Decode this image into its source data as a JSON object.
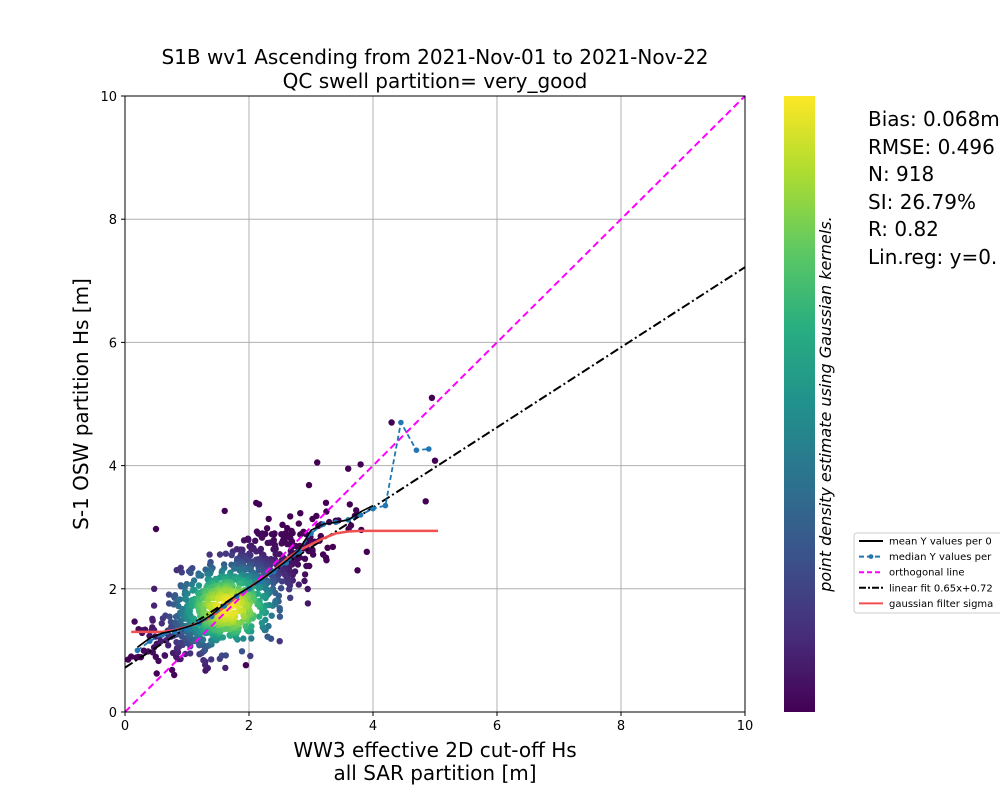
{
  "chart_data": {
    "type": "scatter",
    "title": "S1B wv1 Ascending from 2021-Nov-01 to 2021-Nov-22",
    "subtitle": "QC swell partition= very_good",
    "xlabel": "WW3 effective 2D cut-off Hs",
    "xlabel_line2": "all SAR partition [m]",
    "ylabel": "S-1 OSW partition Hs [m]",
    "xlim": [
      0,
      10
    ],
    "ylim": [
      0,
      10
    ],
    "x_ticks": [
      "0",
      "2",
      "4",
      "6",
      "8",
      "10"
    ],
    "y_ticks": [
      "0",
      "2",
      "4",
      "6",
      "8",
      "10"
    ],
    "grid": true,
    "colorbar_label": "point density estimate using Gaussian kernels.",
    "colormap": "viridis",
    "stats": {
      "bias": "Bias: 0.068m",
      "rmse": "RMSE: 0.496",
      "n": "N: 918",
      "si": "SI: 26.79%",
      "r": "R: 0.82",
      "linreg": "Lin.reg: y=0."
    },
    "legend_position": "lower-right (outside)",
    "legend": [
      {
        "label": "mean Y values per 0",
        "color": "#000000",
        "style": "solid"
      },
      {
        "label": "median Y values per",
        "color": "#1f77b4",
        "style": "dashed-marker"
      },
      {
        "label": "orthogonal line",
        "color": "#ff00ff",
        "style": "dashed"
      },
      {
        "label": "linear fit 0.65x+0.72",
        "color": "#000000",
        "style": "dashdot"
      },
      {
        "label": "gaussian filter sigma",
        "color": "#f05050",
        "style": "solid"
      }
    ],
    "lines": {
      "orthogonal": [
        [
          0,
          0
        ],
        [
          10,
          10
        ]
      ],
      "linear_fit": {
        "slope": 0.65,
        "intercept": 0.72
      },
      "mean": [
        [
          0.2,
          1.05
        ],
        [
          0.4,
          1.2
        ],
        [
          0.6,
          1.28
        ],
        [
          0.8,
          1.32
        ],
        [
          1.0,
          1.38
        ],
        [
          1.2,
          1.45
        ],
        [
          1.4,
          1.58
        ],
        [
          1.6,
          1.75
        ],
        [
          1.8,
          1.9
        ],
        [
          2.0,
          2.02
        ],
        [
          2.2,
          2.15
        ],
        [
          2.4,
          2.3
        ],
        [
          2.6,
          2.45
        ],
        [
          2.8,
          2.62
        ],
        [
          3.0,
          2.95
        ],
        [
          3.2,
          3.05
        ],
        [
          3.4,
          3.08
        ],
        [
          3.6,
          3.12
        ],
        [
          3.8,
          3.25
        ],
        [
          4.0,
          3.35
        ]
      ],
      "median": [
        [
          0.2,
          1.0
        ],
        [
          0.4,
          1.15
        ],
        [
          0.6,
          1.25
        ],
        [
          0.8,
          1.3
        ],
        [
          1.0,
          1.35
        ],
        [
          1.2,
          1.45
        ],
        [
          1.4,
          1.55
        ],
        [
          1.6,
          1.72
        ],
        [
          1.8,
          1.88
        ],
        [
          2.0,
          2.0
        ],
        [
          2.2,
          2.12
        ],
        [
          2.4,
          2.28
        ],
        [
          2.6,
          2.42
        ],
        [
          2.8,
          2.6
        ],
        [
          3.0,
          2.9
        ],
        [
          3.2,
          3.05
        ],
        [
          3.4,
          3.08
        ],
        [
          3.6,
          3.12
        ],
        [
          3.8,
          3.2
        ],
        [
          4.0,
          3.3
        ],
        [
          4.2,
          3.35
        ],
        [
          4.45,
          4.7
        ],
        [
          4.7,
          4.25
        ],
        [
          4.9,
          4.27
        ]
      ],
      "gaussian": [
        [
          0.1,
          1.3
        ],
        [
          0.4,
          1.3
        ],
        [
          0.6,
          1.3
        ],
        [
          0.8,
          1.33
        ],
        [
          1.0,
          1.38
        ],
        [
          1.2,
          1.45
        ],
        [
          1.4,
          1.55
        ],
        [
          1.6,
          1.7
        ],
        [
          1.8,
          1.87
        ],
        [
          2.0,
          2.02
        ],
        [
          2.2,
          2.15
        ],
        [
          2.4,
          2.3
        ],
        [
          2.6,
          2.48
        ],
        [
          2.8,
          2.62
        ],
        [
          3.0,
          2.72
        ],
        [
          3.2,
          2.82
        ],
        [
          3.4,
          2.9
        ],
        [
          3.6,
          2.93
        ],
        [
          3.8,
          2.94
        ],
        [
          4.0,
          2.94
        ],
        [
          4.5,
          2.94
        ],
        [
          5.05,
          2.94
        ]
      ]
    },
    "points": {
      "count": 918,
      "seed": 42,
      "outliers": [
        [
          0.5,
          2.97
        ],
        [
          4.95,
          5.1
        ],
        [
          5.0,
          4.08
        ],
        [
          4.3,
          4.7
        ],
        [
          4.85,
          3.42
        ],
        [
          3.9,
          2.6
        ],
        [
          3.1,
          4.05
        ],
        [
          3.75,
          2.3
        ],
        [
          0.05,
          0.85
        ],
        [
          1.95,
          0.76
        ],
        [
          0.1,
          0.9
        ],
        [
          3.6,
          3.95
        ],
        [
          3.8,
          4.02
        ]
      ]
    }
  }
}
